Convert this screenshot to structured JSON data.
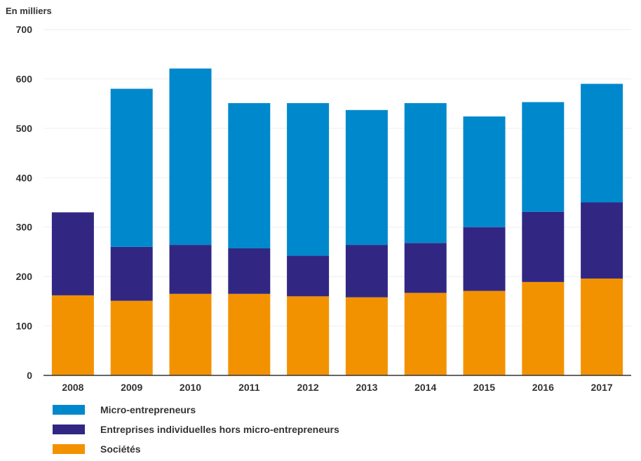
{
  "chart_data": {
    "type": "bar",
    "stacked": true,
    "title": "",
    "xlabel": "",
    "ylabel": "En milliers",
    "ylim": [
      0,
      700
    ],
    "yticks": [
      0,
      100,
      200,
      300,
      400,
      500,
      600,
      700
    ],
    "grid": true,
    "legend_position": "bottom-left",
    "categories": [
      "2008",
      "2009",
      "2010",
      "2011",
      "2012",
      "2013",
      "2014",
      "2015",
      "2016",
      "2017"
    ],
    "series": [
      {
        "name": "Sociétés",
        "color": "#f39200",
        "values": [
          162,
          151,
          165,
          165,
          160,
          158,
          167,
          171,
          189,
          196
        ]
      },
      {
        "name": "Entreprises individuelles hors micro-entrepreneurs",
        "color": "#312783",
        "values": [
          168,
          109,
          99,
          92,
          82,
          106,
          101,
          129,
          142,
          154
        ]
      },
      {
        "name": "Micro-entrepreneurs",
        "color": "#0088cc",
        "values": [
          0,
          320,
          357,
          294,
          309,
          273,
          283,
          224,
          222,
          240
        ]
      }
    ],
    "legend_order": [
      "Micro-entrepreneurs",
      "Entreprises individuelles hors micro-entrepreneurs",
      "Sociétés"
    ]
  }
}
